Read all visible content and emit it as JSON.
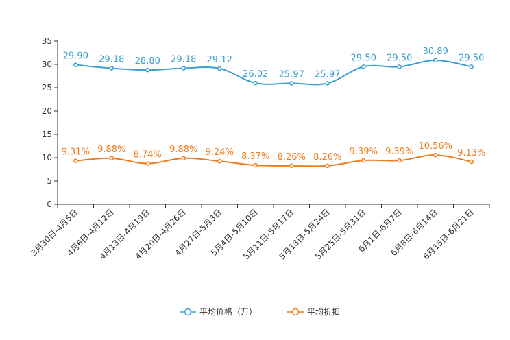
{
  "chart_data": {
    "type": "line",
    "title": "",
    "xlabel": "",
    "ylabel": "",
    "ylim": [
      0,
      35
    ],
    "yticks": [
      0,
      5,
      10,
      15,
      20,
      25,
      30,
      35
    ],
    "grid": false,
    "legend_position": "bottom",
    "categories": [
      "3月30日-4月5日",
      "4月6日-4月12日",
      "4月13日-4月19日",
      "4月20日-4月26日",
      "4月27日-5月3日",
      "5月4日-5月10日",
      "5月11日-5月17日",
      "5月18日-5月24日",
      "5月25日-5月31日",
      "6月1日-6月7日",
      "6月8日-6月14日",
      "6月15日-6月21日"
    ],
    "series": [
      {
        "name": "平均价格（万）",
        "color": "#3a9fd1",
        "values": [
          29.9,
          29.18,
          28.8,
          29.18,
          29.12,
          26.02,
          25.97,
          25.97,
          29.5,
          29.5,
          30.89,
          29.5
        ],
        "labels": [
          "29.90",
          "29.18",
          "28.80",
          "29.18",
          "29.12",
          "26.02",
          "25.97",
          "25.97",
          "29.50",
          "29.50",
          "30.89",
          "29.50"
        ]
      },
      {
        "name": "平均折扣",
        "color": "#f07c1a",
        "values": [
          9.31,
          9.88,
          8.74,
          9.88,
          9.24,
          8.37,
          8.26,
          8.26,
          9.39,
          9.39,
          10.56,
          9.13
        ],
        "labels": [
          "9.31%",
          "9.88%",
          "8.74%",
          "9.88%",
          "9.24%",
          "8.37%",
          "8.26%",
          "8.26%",
          "9.39%",
          "9.39%",
          "10.56%",
          "9.13%"
        ]
      }
    ]
  }
}
